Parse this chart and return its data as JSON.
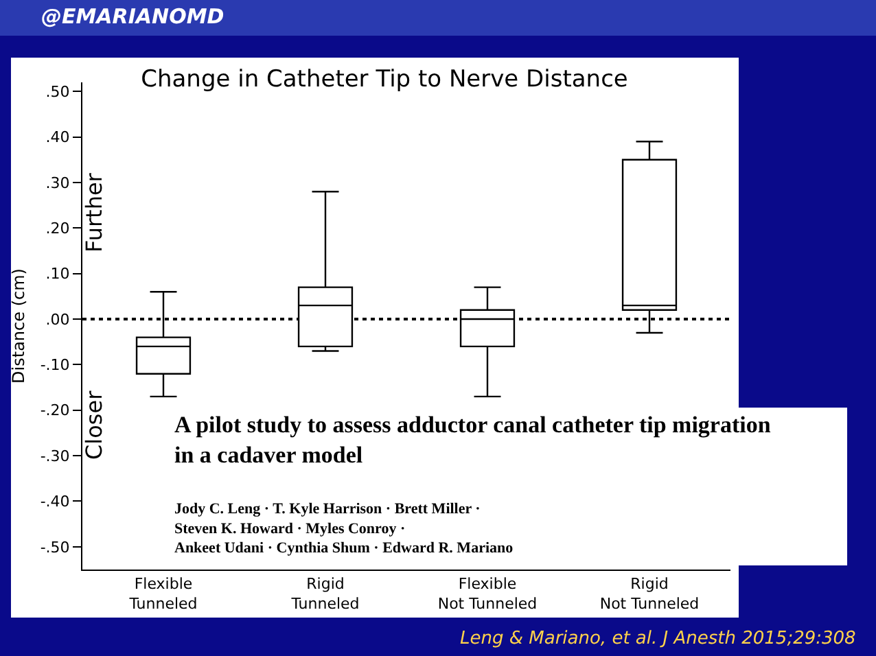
{
  "chart_data": {
    "type": "box",
    "title": "Change in Catheter Tip to Nerve Distance",
    "ylabel": "Distance (cm)",
    "categories": [
      "Flexible\nTunneled",
      "Rigid\nTunneled",
      "Flexible\nNot Tunneled",
      "Rigid\nNot Tunneled"
    ],
    "color": "#000000",
    "boxes": [
      {
        "low": -0.17,
        "q1": -0.12,
        "median": -0.06,
        "q3": -0.04,
        "high": 0.06
      },
      {
        "low": -0.07,
        "q1": -0.06,
        "median": 0.03,
        "q3": 0.07,
        "high": 0.28
      },
      {
        "low": -0.17,
        "q1": -0.06,
        "median": 0.0,
        "q3": 0.02,
        "high": 0.07
      },
      {
        "low": -0.03,
        "q1": 0.02,
        "median": 0.03,
        "q3": 0.35,
        "high": 0.39
      }
    ],
    "ylim": [
      -0.55,
      0.52
    ],
    "yticks": [
      {
        "value": -0.5,
        "label": "-.50"
      },
      {
        "value": -0.4,
        "label": "-.40"
      },
      {
        "value": -0.3,
        "label": "-.30"
      },
      {
        "value": -0.2,
        "label": "-.20"
      },
      {
        "value": -0.1,
        "label": "-.10"
      },
      {
        "value": 0,
        "label": ".00"
      },
      {
        "value": 0.1,
        "label": ".10"
      },
      {
        "value": 0.2,
        "label": ".20"
      },
      {
        "value": 0.3,
        "label": ".30"
      },
      {
        "value": 0.4,
        "label": ".40"
      },
      {
        "value": 0.5,
        "label": ".50"
      }
    ],
    "ref_lines": [
      {
        "axis": "y",
        "value": 0,
        "line_style": "dotted",
        "color": "#000000"
      }
    ],
    "grid": false,
    "legend": false,
    "annotations": [
      "Further",
      "Closer",
      "A pilot study to assess adductor canal catheter tip migration\nin a cadaver model",
      "Jody C. Leng · T. Kyle Harrison · Brett Miller ·\nSteven K. Howard · Myles Conroy ·\nAnkeet Udani · Cynthia Shum · Edward R. Mariano",
      "@EMARIANOMD",
      "Leng & Mariano, et al. J Anesth 2015;29:308"
    ]
  }
}
